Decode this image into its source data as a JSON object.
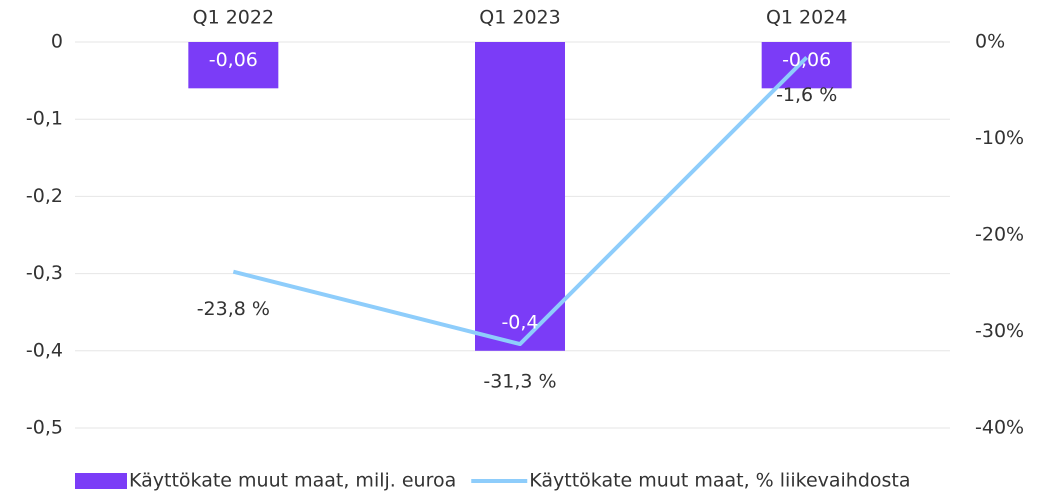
{
  "chart_data": {
    "type": "combo",
    "categories": [
      "Q1 2022",
      "Q1 2023",
      "Q1 2024"
    ],
    "series": [
      {
        "name": "Käyttökate muut maat, milj. euroa",
        "type": "bar",
        "color": "#7b3cf7",
        "values": [
          -0.06,
          -0.4,
          -0.06
        ],
        "value_labels": [
          "-0,06",
          "-0,4",
          "-0,06"
        ]
      },
      {
        "name": "Käyttökate muut maat, % liikevaihdosta",
        "type": "line",
        "axis": "y2",
        "color": "#8ecdfb",
        "values": [
          -23.8,
          -31.3,
          -1.6
        ],
        "value_labels": [
          "-23,8 %",
          "-31,3 %",
          "-1,6 %"
        ]
      }
    ],
    "ylim": [
      -0.5,
      0
    ],
    "yticks": [
      0,
      {
        "value": -0.1,
        "label": "-0,1"
      },
      {
        "value": -0.2,
        "label": "-0,2"
      },
      {
        "value": -0.3,
        "label": "-0,3"
      },
      {
        "value": -0.4,
        "label": "-0,4"
      },
      {
        "value": -0.5,
        "label": "-0,5"
      }
    ],
    "y2lim": [
      -40,
      0
    ],
    "y2ticks": [
      {
        "value": 0,
        "label": "0%"
      },
      {
        "value": -10,
        "label": "-10%"
      },
      {
        "value": -20,
        "label": "-20%"
      },
      {
        "value": -30,
        "label": "-30%"
      },
      {
        "value": -40,
        "label": "-40%"
      }
    ],
    "grid": true,
    "legend": "bottom"
  }
}
